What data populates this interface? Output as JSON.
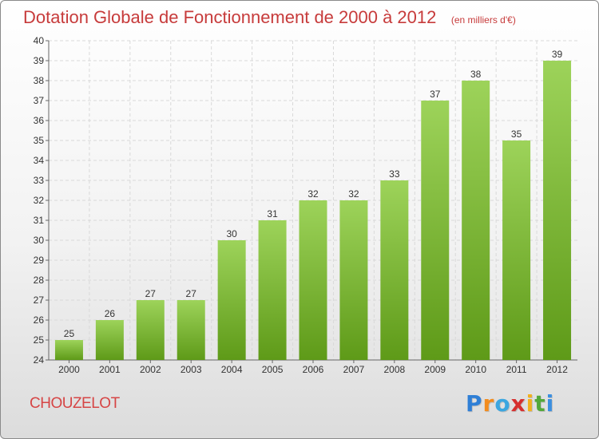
{
  "chart_title": "Dotation Globale de Fonctionnement de 2000 à 2012",
  "chart_unit": "(en milliers d'€)",
  "commune_name": "CHOUZELOT",
  "logo": {
    "text": "Proxiti",
    "letters": [
      "P",
      "r",
      "o",
      "x",
      "i",
      "t",
      "i"
    ],
    "colors": [
      "#2f7fd6",
      "#f28c1e",
      "#3ba6e0",
      "#d6302f",
      "#f2b11e",
      "#53a83a",
      "#3b8fe0"
    ]
  },
  "chart_data": {
    "type": "bar",
    "title": "Dotation Globale de Fonctionnement de 2000 à 2012",
    "subtitle": "(en milliers d'€)",
    "categories": [
      "2000",
      "2001",
      "2002",
      "2003",
      "2004",
      "2005",
      "2006",
      "2007",
      "2008",
      "2009",
      "2010",
      "2011",
      "2012"
    ],
    "values": [
      25,
      26,
      27,
      27,
      30,
      31,
      32,
      32,
      33,
      37,
      38,
      35,
      39
    ],
    "ylim": [
      24,
      40
    ],
    "yticks": [
      24,
      25,
      26,
      27,
      28,
      29,
      30,
      31,
      32,
      33,
      34,
      35,
      36,
      37,
      38,
      39,
      40
    ],
    "grid": true,
    "bar_color_top": "#9dd35a",
    "bar_color_bottom": "#5e9a18",
    "xlabel": "",
    "ylabel": ""
  }
}
